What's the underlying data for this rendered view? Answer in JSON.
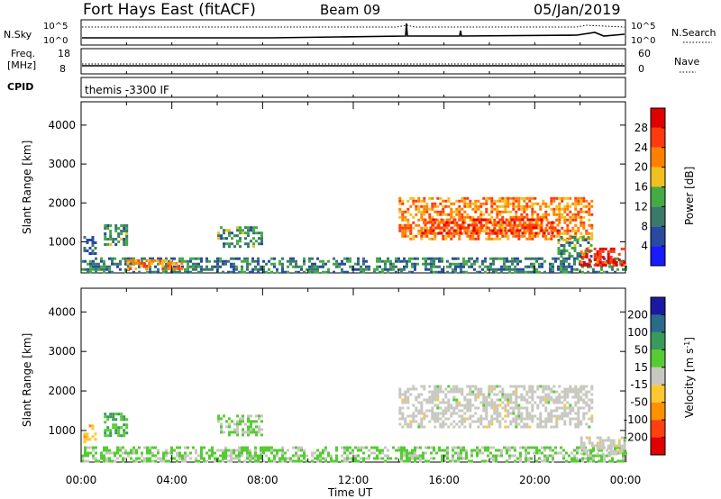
{
  "header": {
    "station": "Fort Hays East (fitACF)",
    "beam": "Beam 09",
    "date": "05/Jan/2019"
  },
  "nsky_panel": {
    "left_label": "N.Sky",
    "right_label": "N.Search",
    "ticks": [
      "10^5",
      "10^0"
    ]
  },
  "freq_panel": {
    "left_label_1": "Freq.",
    "left_label_2": "[MHz]",
    "left_ticks": [
      "18",
      "8"
    ],
    "right_label": "Nave",
    "right_ticks": [
      "60",
      "0"
    ]
  },
  "cpid_panel": {
    "label": "CPID",
    "value": "themis -3300 IF"
  },
  "colors": {
    "power_scale": [
      "#1a1aff",
      "#2a4aa0",
      "#3a7a6a",
      "#44aa44",
      "#f0c020",
      "#ff8000",
      "#ff3a10",
      "#e00000"
    ],
    "velocity_scale": [
      "#e00000",
      "#ff4010",
      "#ff9000",
      "#ffc830",
      "#c8c8c0",
      "#55cc33",
      "#3a9a5a",
      "#2a6a8a",
      "#1a1aa0"
    ],
    "ground_scatter": "#c8c8c0"
  },
  "chart_data": [
    {
      "type": "heatmap",
      "name": "power-panel",
      "quantity": "Power",
      "units": "dB",
      "colorbar_label": "Power [dB]",
      "colorbar_ticks": [
        "28",
        "24",
        "20",
        "16",
        "12",
        "8",
        "4"
      ],
      "colorbar_range": [
        0,
        32
      ],
      "ylabel": "Slant Range [km]",
      "yticks": [
        "4000",
        "3000",
        "2000",
        "1000"
      ],
      "ylim": [
        200,
        4600
      ],
      "xlim": [
        0,
        24
      ],
      "x_unit": "hours UT",
      "regions": [
        {
          "x": [
            0.1,
            0.6
          ],
          "y": [
            700,
            1150
          ],
          "value": 8
        },
        {
          "x": [
            1.0,
            2.0
          ],
          "y": [
            900,
            1450
          ],
          "value": 12
        },
        {
          "x": [
            6.0,
            8.0
          ],
          "y": [
            900,
            1400
          ],
          "value": 12
        },
        {
          "x": [
            0.0,
            24.0
          ],
          "y": [
            250,
            600
          ],
          "value": 10
        },
        {
          "x": [
            2.0,
            4.5
          ],
          "y": [
            300,
            550
          ],
          "value": 22
        },
        {
          "x": [
            14.0,
            22.5
          ],
          "y": [
            1100,
            2150
          ],
          "value": 22
        },
        {
          "x": [
            15.0,
            21.0
          ],
          "y": [
            1200,
            1600
          ],
          "value": 26
        },
        {
          "x": [
            21.0,
            22.5
          ],
          "y": [
            650,
            1150
          ],
          "value": 12
        },
        {
          "x": [
            22.0,
            24.0
          ],
          "y": [
            400,
            850
          ],
          "value": 28
        }
      ]
    },
    {
      "type": "heatmap",
      "name": "velocity-panel",
      "quantity": "Velocity",
      "units": "m s^-1",
      "colorbar_label": "Velocity [m s",
      "colorbar_label_exp": "-1",
      "colorbar_label_end": "]",
      "colorbar_ticks": [
        "200",
        "100",
        "50",
        "15",
        "-15",
        "-50",
        "-100",
        "-200"
      ],
      "colorbar_range": [
        -250,
        250
      ],
      "ylabel": "Slant Range [km]",
      "yticks": [
        "4000",
        "3000",
        "2000",
        "1000"
      ],
      "ylim": [
        200,
        4600
      ],
      "xlim": [
        0,
        24
      ],
      "xticks": [
        "00:00",
        "04:00",
        "08:00",
        "12:00",
        "16:00",
        "20:00",
        "00:00"
      ],
      "xlabel": "Time UT",
      "regions": [
        {
          "x": [
            0.1,
            0.6
          ],
          "y": [
            700,
            1150
          ],
          "value": -60
        },
        {
          "x": [
            1.0,
            2.0
          ],
          "y": [
            900,
            1450
          ],
          "value": 80
        },
        {
          "x": [
            6.0,
            8.0
          ],
          "y": [
            900,
            1400
          ],
          "value": 40
        },
        {
          "x": [
            0.0,
            24.0
          ],
          "y": [
            250,
            600
          ],
          "value": 40
        },
        {
          "x": [
            14.0,
            22.5
          ],
          "y": [
            1100,
            2150
          ],
          "value": 0
        },
        {
          "x": [
            22.0,
            24.0
          ],
          "y": [
            400,
            850
          ],
          "value": 0
        }
      ]
    }
  ]
}
